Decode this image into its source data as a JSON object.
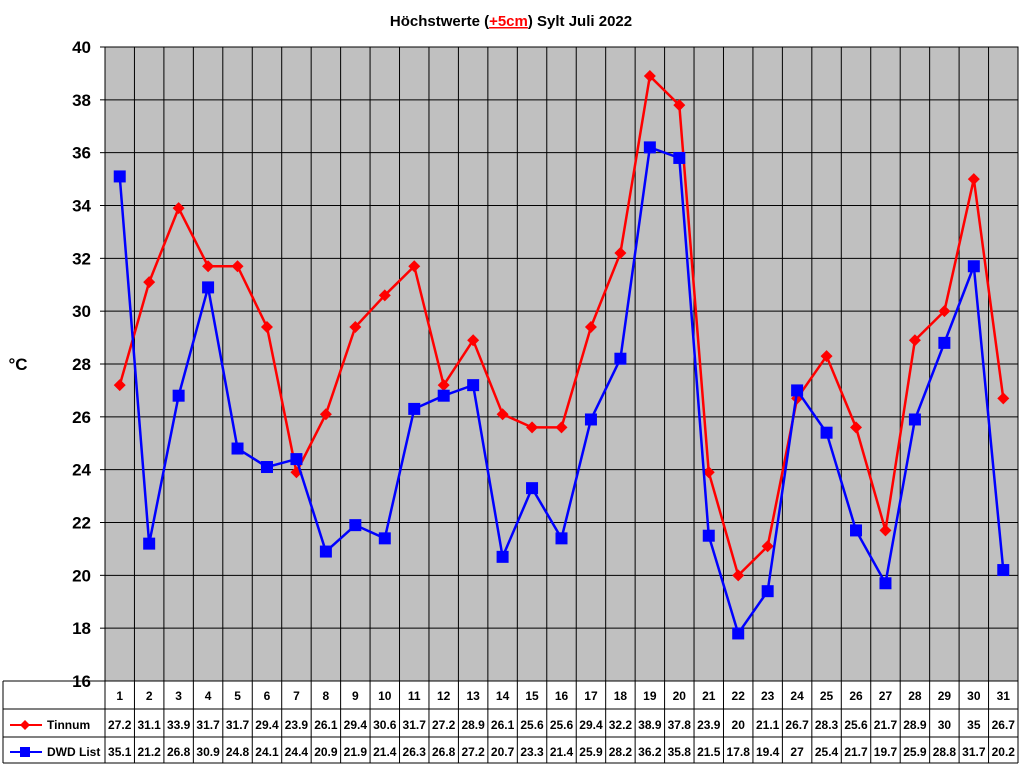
{
  "chart_data": {
    "type": "line",
    "title": {
      "prefix": "Höchstwerte (",
      "highlight": "+5cm",
      "suffix": ") Sylt Juli 2022"
    },
    "ylabel": "°C",
    "ylim": [
      16,
      40
    ],
    "ytick_step": 2,
    "grid": true,
    "categories": [
      "1",
      "2",
      "3",
      "4",
      "5",
      "6",
      "7",
      "8",
      "9",
      "10",
      "11",
      "12",
      "13",
      "14",
      "15",
      "16",
      "17",
      "18",
      "19",
      "20",
      "21",
      "22",
      "23",
      "24",
      "25",
      "26",
      "27",
      "28",
      "29",
      "30",
      "31"
    ],
    "series": [
      {
        "name": "Tinnum",
        "color": "#ff0000",
        "marker": "diamond",
        "values": [
          27.2,
          31.1,
          33.9,
          31.7,
          31.7,
          29.4,
          23.9,
          26.1,
          29.4,
          30.6,
          31.7,
          27.2,
          28.9,
          26.1,
          25.6,
          25.6,
          29.4,
          32.2,
          38.9,
          37.8,
          23.9,
          20,
          21.1,
          26.7,
          28.3,
          25.6,
          21.7,
          28.9,
          30,
          35,
          26.7
        ],
        "labels": [
          "27.2",
          "31.1",
          "33.9",
          "31.7",
          "31.7",
          "29.4",
          "23.9",
          "26.1",
          "29.4",
          "30.6",
          "31.7",
          "27.2",
          "28.9",
          "26.1",
          "25.6",
          "25.6",
          "29.4",
          "32.2",
          "38.9",
          "37.8",
          "23.9",
          "20",
          "21.1",
          "26.7",
          "28.3",
          "25.6",
          "21.7",
          "28.9",
          "30",
          "35",
          "26.7"
        ]
      },
      {
        "name": "DWD List",
        "color": "#0000ff",
        "marker": "square",
        "values": [
          35.1,
          21.2,
          26.8,
          30.9,
          24.8,
          24.1,
          24.4,
          20.9,
          21.9,
          21.4,
          26.3,
          26.8,
          27.2,
          20.7,
          23.3,
          21.4,
          25.9,
          28.2,
          36.2,
          35.8,
          21.5,
          17.8,
          19.4,
          27,
          25.4,
          21.7,
          19.7,
          25.9,
          28.8,
          31.7,
          20.2
        ],
        "labels": [
          "35.1",
          "21.2",
          "26.8",
          "30.9",
          "24.8",
          "24.1",
          "24.4",
          "20.9",
          "21.9",
          "21.4",
          "26.3",
          "26.8",
          "27.2",
          "20.7",
          "23.3",
          "21.4",
          "25.9",
          "28.2",
          "36.2",
          "35.8",
          "21.5",
          "17.8",
          "19.4",
          "27",
          "25.4",
          "21.7",
          "19.7",
          "25.9",
          "28.8",
          "31.7",
          "20.2"
        ]
      }
    ],
    "plot_background": "#c0c0c0"
  }
}
